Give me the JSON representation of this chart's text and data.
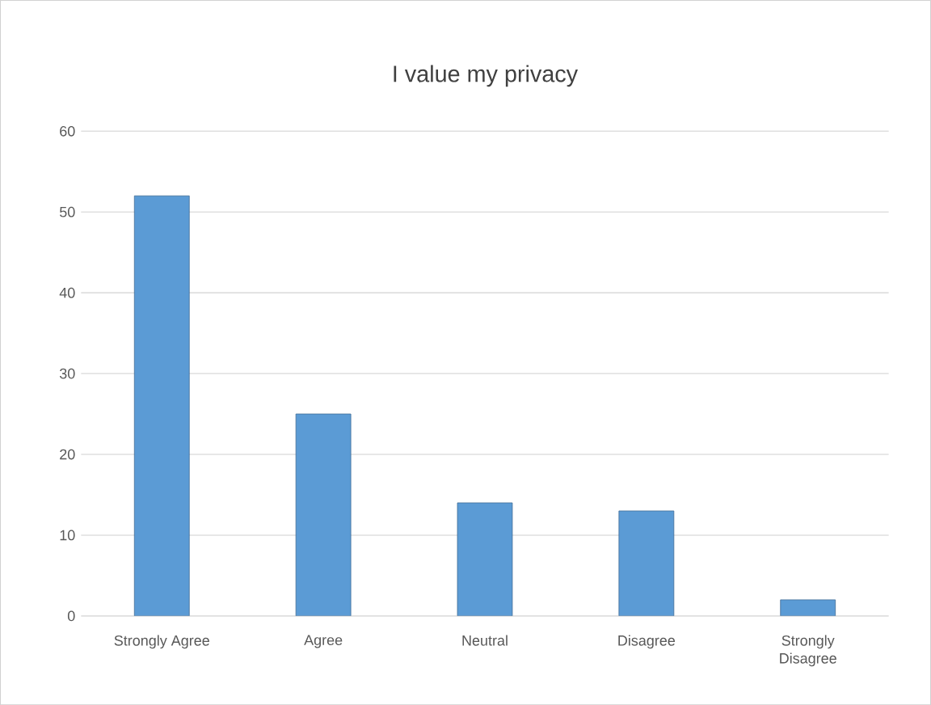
{
  "chart_data": {
    "type": "bar",
    "title": "I value my privacy",
    "categories": [
      "Strongly Agree",
      "Agree",
      "Neutral",
      "Disagree",
      "Strongly Disagree"
    ],
    "values": [
      52,
      25,
      14,
      13,
      2
    ],
    "color": "#5b9bd5",
    "ylim": [
      0,
      60
    ],
    "yticks": [
      0,
      10,
      20,
      30,
      40,
      50,
      60
    ],
    "grid": "y"
  }
}
